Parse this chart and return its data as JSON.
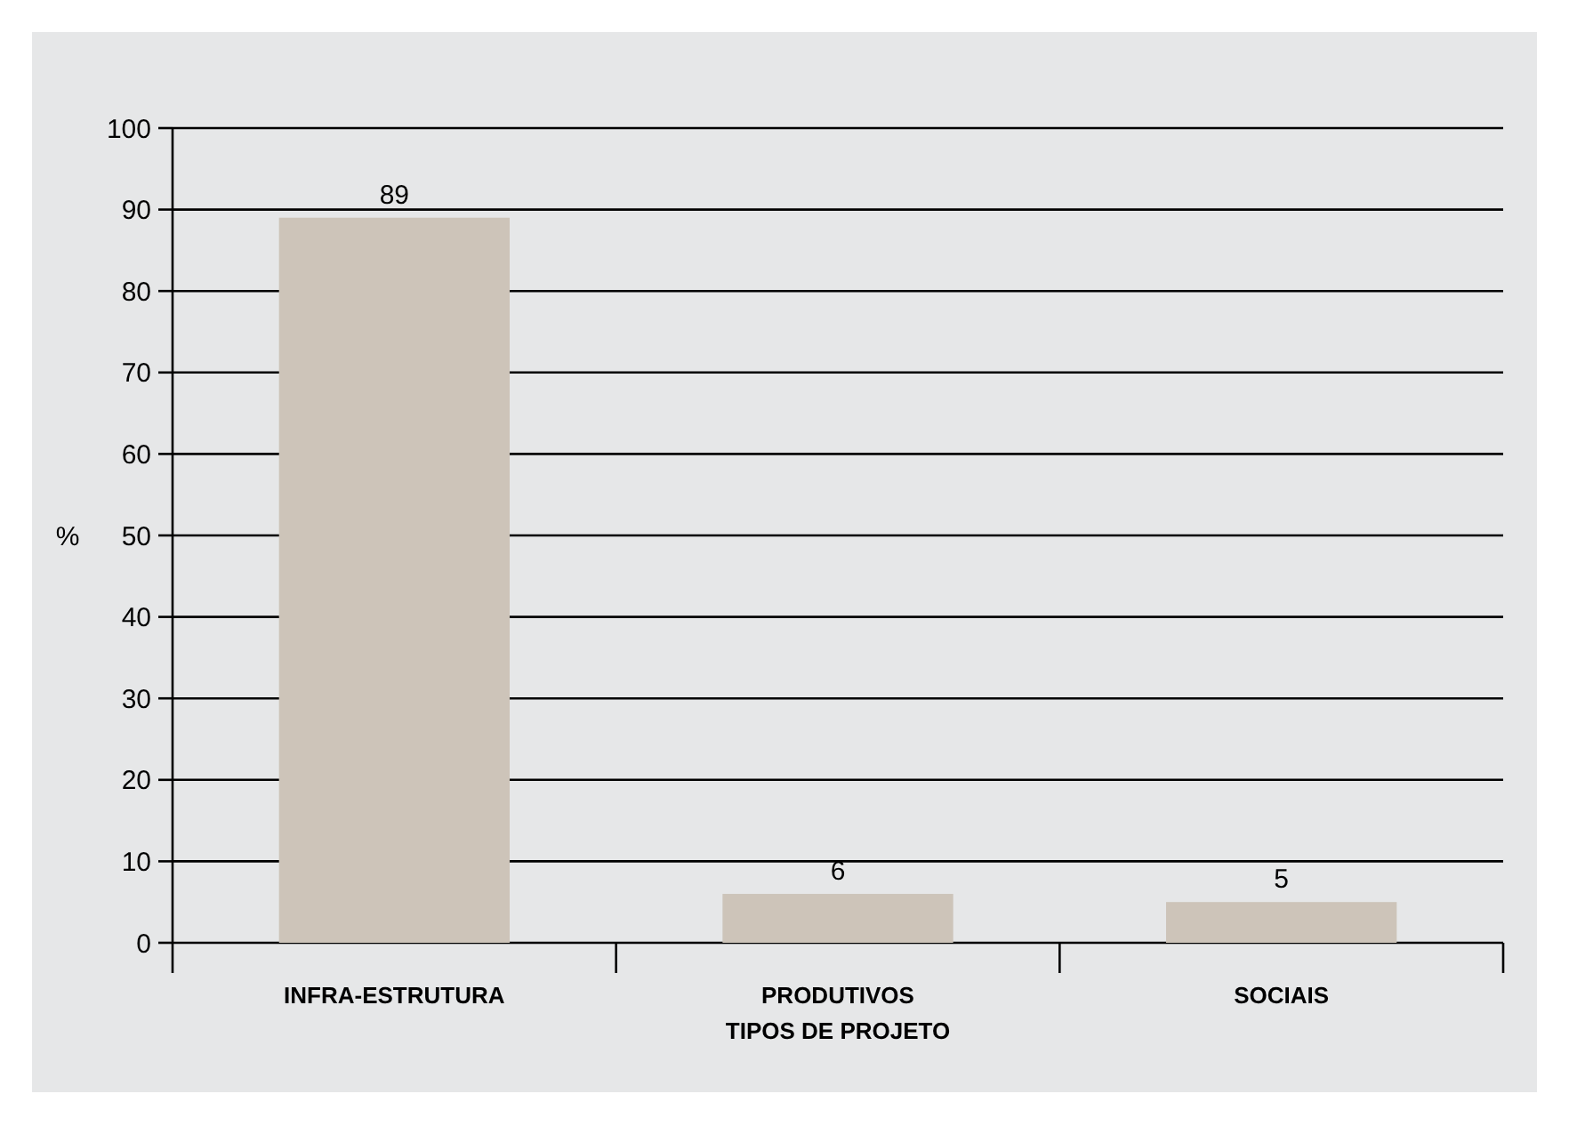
{
  "chart_data": {
    "type": "bar",
    "xlabel": "TIPOS DE PROJETO",
    "ylabel": "%",
    "categories": [
      "INFRA-ESTRUTURA",
      "PRODUTIVOS",
      "SOCIAIS"
    ],
    "values": [
      89,
      6,
      5
    ],
    "color": "#cdc4b9",
    "ylim": [
      0,
      100
    ],
    "yticks": [
      0,
      10,
      20,
      30,
      40,
      50,
      60,
      70,
      80,
      90,
      100
    ],
    "grid": "y",
    "data_labels": true
  }
}
